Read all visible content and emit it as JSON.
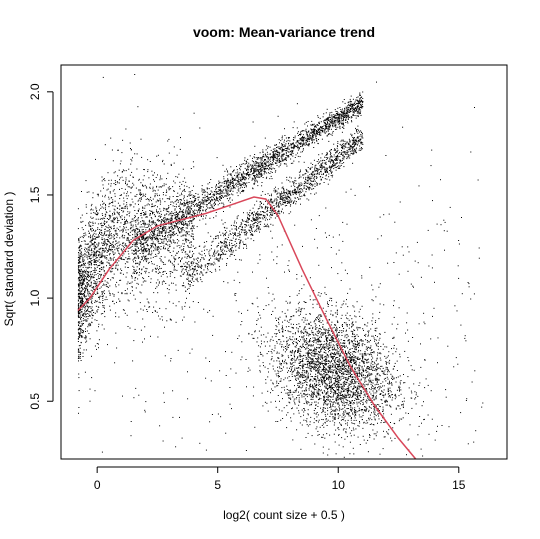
{
  "chart_data": {
    "type": "scatter",
    "title": "voom: Mean-variance trend",
    "xlabel": "log2( count size + 0.5 )",
    "ylabel": "Sqrt( standard deviation )",
    "xlim": [
      -1.5,
      17
    ],
    "ylim": [
      0.22,
      2.13
    ],
    "x_ticks": [
      0,
      5,
      10,
      15
    ],
    "y_ticks": [
      0.5,
      1.0,
      1.5,
      2.0
    ],
    "x_tick_labels": [
      "0",
      "5",
      "10",
      "15"
    ],
    "y_tick_labels": [
      "0.5",
      "1.0",
      "1.5",
      "2.0"
    ],
    "grid": false,
    "point_color": "#000000",
    "trend_color": "#d9475a",
    "point_clusters": [
      {
        "region": "low-count cloud",
        "x_range": [
          -0.8,
          4.0
        ],
        "y_center": 1.3,
        "y_spread": 0.16,
        "count": 2600
      },
      {
        "region": "upper diagonal band",
        "x_range": [
          1.5,
          11.0
        ],
        "y_start": 1.25,
        "y_end": 1.95,
        "y_spread": 0.035,
        "count": 2200
      },
      {
        "region": "lower diagonal band",
        "x_range": [
          3.5,
          11.0
        ],
        "y_start": 1.1,
        "y_end": 1.78,
        "y_spread": 0.04,
        "count": 1400
      },
      {
        "region": "high-count cloud",
        "x_range": [
          7.0,
          14.0
        ],
        "y_center": 0.65,
        "y_spread": 0.14,
        "count": 3200
      },
      {
        "region": "scattered outliers",
        "x_range": [
          -0.5,
          16.0
        ],
        "y_center": 1.0,
        "y_spread": 0.4,
        "count": 500
      }
    ],
    "trend_line": {
      "name": "",
      "x": [
        -0.8,
        -0.3,
        0.5,
        1.5,
        2.5,
        3.5,
        4.5,
        5.5,
        6.5,
        7.0,
        7.5,
        8.5,
        9.5,
        10.5,
        11.5,
        12.5,
        13.5
      ],
      "y": [
        0.94,
        1.0,
        1.14,
        1.28,
        1.35,
        1.38,
        1.41,
        1.45,
        1.49,
        1.48,
        1.4,
        1.14,
        0.9,
        0.67,
        0.48,
        0.32,
        0.18
      ]
    }
  }
}
